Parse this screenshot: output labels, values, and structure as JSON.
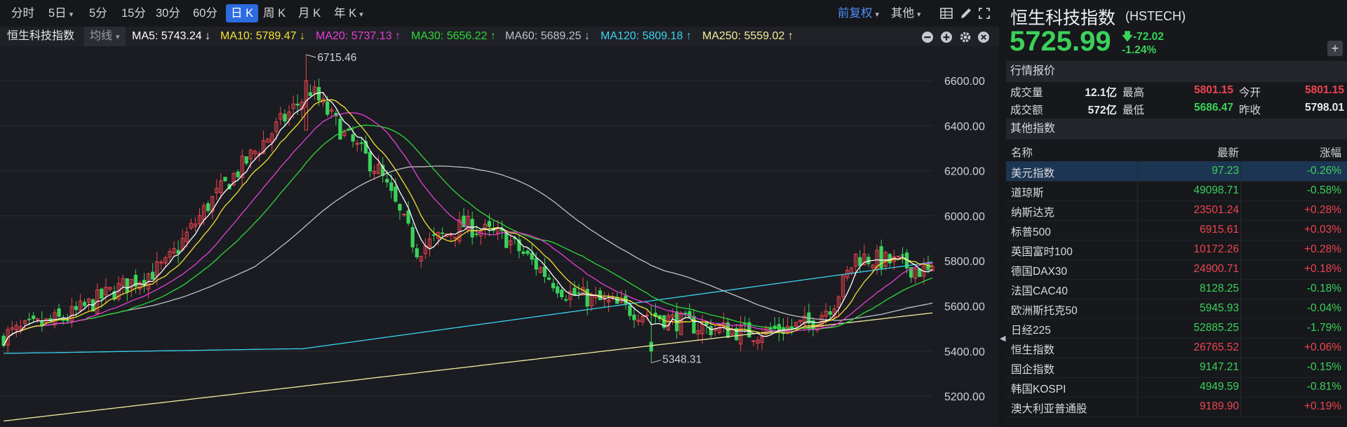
{
  "toolbar": {
    "periods": [
      {
        "label": "分时",
        "caret": false,
        "active": false
      },
      {
        "label": "5日",
        "caret": true,
        "active": false
      },
      {
        "label": "5分",
        "caret": false,
        "active": false
      },
      {
        "label": "15分",
        "caret": false,
        "active": false
      },
      {
        "label": "30分",
        "caret": false,
        "active": false
      },
      {
        "label": "60分",
        "caret": false,
        "active": false
      },
      {
        "label": "日 K",
        "caret": false,
        "active": true
      },
      {
        "label": "周 K",
        "caret": false,
        "active": false
      },
      {
        "label": "月 K",
        "caret": false,
        "active": false
      },
      {
        "label": "年 K",
        "caret": true,
        "active": false
      }
    ],
    "adjust_label": "前复权",
    "other_label": "其他",
    "icons": [
      "layout-grid-icon",
      "draw-brush-icon",
      "fullscreen-icon"
    ]
  },
  "ma_bar": {
    "name": "恒生科技指数",
    "selector": "均线",
    "items": [
      {
        "text": "MA5: 5743.24 ↓",
        "color": "#ffffff"
      },
      {
        "text": "MA10: 5789.47 ↓",
        "color": "#f5e132"
      },
      {
        "text": "MA20: 5737.13 ↑",
        "color": "#e83ed6"
      },
      {
        "text": "MA30: 5656.22 ↑",
        "color": "#2fd63a"
      },
      {
        "text": "MA60: 5689.25 ↓",
        "color": "#bfc1c7"
      },
      {
        "text": "MA120: 5809.18 ↑",
        "color": "#3ad2ee"
      },
      {
        "text": "MA250: 5559.02 ↑",
        "color": "#f3eb9e"
      }
    ],
    "controls": [
      "zoom-out-icon",
      "zoom-in-icon",
      "settings-icon",
      "close-icon"
    ]
  },
  "chart_data": {
    "type": "candlestick",
    "y_ticks": [
      "6600.00",
      "6400.00",
      "6200.00",
      "6000.00",
      "5800.00",
      "5600.00",
      "5400.00",
      "5200.00"
    ],
    "ylim": [
      5130,
      6750
    ],
    "high_label": "6715.46",
    "low_label": "5348.31",
    "up_color": "#f0444f",
    "down_color": "#3bd15a",
    "ma_colors": {
      "ma5": "#ffffff",
      "ma10": "#f5e132",
      "ma20": "#e83ed6",
      "ma30": "#2fd63a",
      "ma60": "#bfc1c7",
      "ma120": "#3ad2ee",
      "ma250": "#f3eb9e"
    }
  },
  "quote": {
    "name": "恒生科技指数",
    "code": "(HSTECH)",
    "price": "5725.99",
    "change": "-72.02",
    "change_pct": "-1.24%",
    "plus": "+"
  },
  "market": {
    "section_title": "行情报价",
    "volume_label": "成交量",
    "volume": "12.1亿",
    "high_label": "最高",
    "high": "5801.15",
    "open_label": "今开",
    "open": "5801.15",
    "amount_label": "成交额",
    "amount": "572亿",
    "low_label": "最低",
    "low": "5686.47",
    "prev_label": "昨收",
    "prev": "5798.01"
  },
  "indices": {
    "section_title": "其他指数",
    "headers": {
      "name": "名称",
      "price": "最新",
      "change": "涨幅"
    },
    "rows": [
      {
        "name": "美元指数",
        "price": "97.23",
        "change": "-0.26%",
        "dir": "down",
        "selected": true
      },
      {
        "name": "道琼斯",
        "price": "49098.71",
        "change": "-0.58%",
        "dir": "down",
        "selected": false
      },
      {
        "name": "纳斯达克",
        "price": "23501.24",
        "change": "+0.28%",
        "dir": "up",
        "selected": false
      },
      {
        "name": "标普500",
        "price": "6915.61",
        "change": "+0.03%",
        "dir": "up",
        "selected": false
      },
      {
        "name": "英国富时100",
        "price": "10172.26",
        "change": "+0.28%",
        "dir": "up",
        "selected": false
      },
      {
        "name": "德国DAX30",
        "price": "24900.71",
        "change": "+0.18%",
        "dir": "up",
        "selected": false
      },
      {
        "name": "法国CAC40",
        "price": "8128.25",
        "change": "-0.18%",
        "dir": "down",
        "selected": false
      },
      {
        "name": "欧洲斯托克50",
        "price": "5945.93",
        "change": "-0.04%",
        "dir": "down",
        "selected": false
      },
      {
        "name": "日经225",
        "price": "52885.25",
        "change": "-1.79%",
        "dir": "down",
        "selected": false
      },
      {
        "name": "恒生指数",
        "price": "26765.52",
        "change": "+0.06%",
        "dir": "up",
        "selected": false
      },
      {
        "name": "国企指数",
        "price": "9147.21",
        "change": "-0.15%",
        "dir": "down",
        "selected": false
      },
      {
        "name": "韩国KOSPI",
        "price": "4949.59",
        "change": "-0.81%",
        "dir": "down",
        "selected": false
      },
      {
        "name": "澳大利亚普通股",
        "price": "9189.90",
        "change": "+0.19%",
        "dir": "up",
        "selected": false
      }
    ]
  },
  "colors": {
    "up": "#f0444f",
    "down": "#3bd15a",
    "accent": "#2d6be0"
  }
}
